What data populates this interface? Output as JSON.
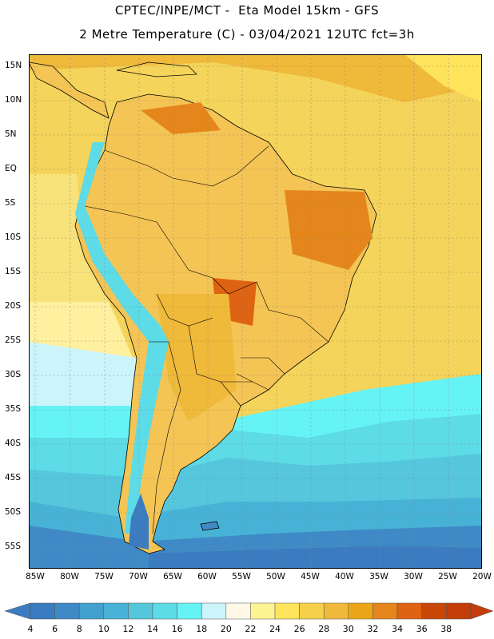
{
  "header": {
    "title_line1": "CPTEC/INPE/MCT -  Eta Model 15km - GFS",
    "title_line2": "2 Metre Temperature (C) - 03/04/2021 12UTC fct=3h"
  },
  "axes": {
    "lat_labels": [
      "15N",
      "10N",
      "5N",
      "EQ",
      "5S",
      "10S",
      "15S",
      "20S",
      "25S",
      "30S",
      "35S",
      "40S",
      "45S",
      "50S",
      "55S"
    ],
    "lon_labels": [
      "85W",
      "80W",
      "75W",
      "70W",
      "65W",
      "60W",
      "55W",
      "50W",
      "45W",
      "40W",
      "35W",
      "30W",
      "25W",
      "20W"
    ]
  },
  "colorbar": {
    "ticks": [
      "4",
      "6",
      "8",
      "10",
      "12",
      "14",
      "16",
      "18",
      "20",
      "22",
      "24",
      "26",
      "28",
      "30",
      "32",
      "34",
      "36",
      "38"
    ],
    "colors": [
      "#3a7cbf",
      "#3f8ac6",
      "#44a0cc",
      "#48b2d6",
      "#55c6dc",
      "#5ddbe6",
      "#66f3f5",
      "#ccf4fb",
      "#fff8e6",
      "#fff494",
      "#fde45c",
      "#f6d04a",
      "#efb93a",
      "#eba617",
      "#e4861c",
      "#de6312",
      "#c84606",
      "#c43c08"
    ]
  }
}
